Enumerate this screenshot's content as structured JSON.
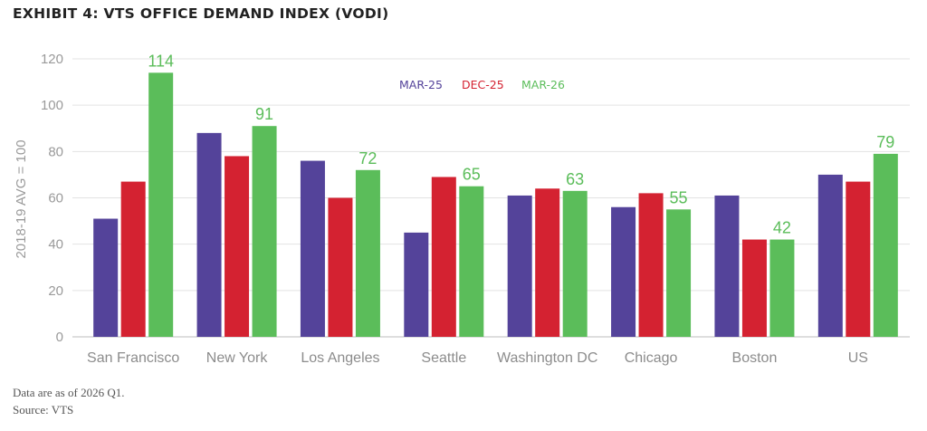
{
  "title": "EXHIBIT 4: VTS OFFICE DEMAND INDEX (VODI)",
  "footnote": "Data are as of 2026 Q1.",
  "source": "Source: VTS",
  "chart_data": {
    "type": "bar",
    "title": "EXHIBIT 4: VTS OFFICE DEMAND INDEX (VODI)",
    "ylabel": "2018-19 AVG = 100",
    "xlabel": "",
    "ylim": [
      0,
      120
    ],
    "yticks": [
      0,
      20,
      40,
      60,
      80,
      100,
      120
    ],
    "grid": true,
    "legend_position": "top-center",
    "categories": [
      "San Francisco",
      "New York",
      "Los Angeles",
      "Seattle",
      "Washington DC",
      "Chicago",
      "Boston",
      "US"
    ],
    "series": [
      {
        "name": "MAR-25",
        "color": "#54439a",
        "values": [
          51,
          88,
          76,
          45,
          61,
          56,
          61,
          70
        ]
      },
      {
        "name": "DEC-25",
        "color": "#d42231",
        "values": [
          67,
          78,
          60,
          69,
          64,
          62,
          42,
          67
        ]
      },
      {
        "name": "MAR-26",
        "color": "#5bbd5a",
        "values": [
          114,
          91,
          72,
          65,
          63,
          55,
          42,
          79
        ]
      }
    ],
    "data_labels": {
      "series": "MAR-26",
      "values": [
        "114",
        "91",
        "72",
        "65",
        "63",
        "55",
        "42",
        "79"
      ]
    }
  }
}
